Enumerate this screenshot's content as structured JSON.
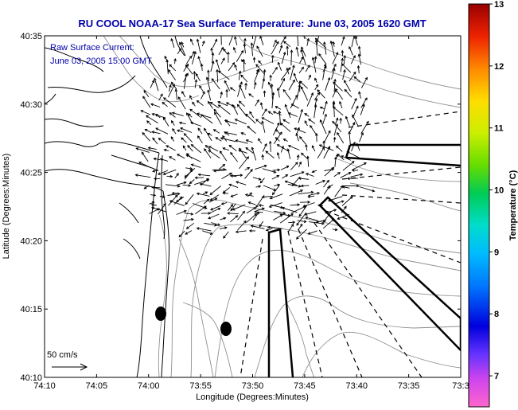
{
  "title": "RU COOL  NOAA-17  Sea Surface Temperature:  June 03, 2005 1620 GMT",
  "legend": {
    "line1": "Raw Surface Current:",
    "line2": "June 03, 2005 15:00 GMT"
  },
  "scale_label": "50 cm/s",
  "colors": {
    "title": "#0000aa",
    "coast": "#000000",
    "bathymetry": "#888888",
    "vectors": "#000000"
  },
  "x_axis": {
    "label": "Longitude (Degrees:Minutes)",
    "ticks": [
      "74:10",
      "74:05",
      "74:00",
      "73:55",
      "73:50",
      "73:45",
      "73:40",
      "73:35",
      "73:3"
    ]
  },
  "y_axis": {
    "label": "Latitude (Degrees:Minutes)",
    "ticks": [
      "40:35",
      "40:30",
      "40:25",
      "40:20",
      "40:15",
      "40:10"
    ]
  },
  "colorbar": {
    "label": "Temperature (°C)",
    "ticks": [
      "13",
      "12",
      "11",
      "10",
      "9",
      "8",
      "7"
    ],
    "range": [
      6.5,
      13
    ]
  }
}
